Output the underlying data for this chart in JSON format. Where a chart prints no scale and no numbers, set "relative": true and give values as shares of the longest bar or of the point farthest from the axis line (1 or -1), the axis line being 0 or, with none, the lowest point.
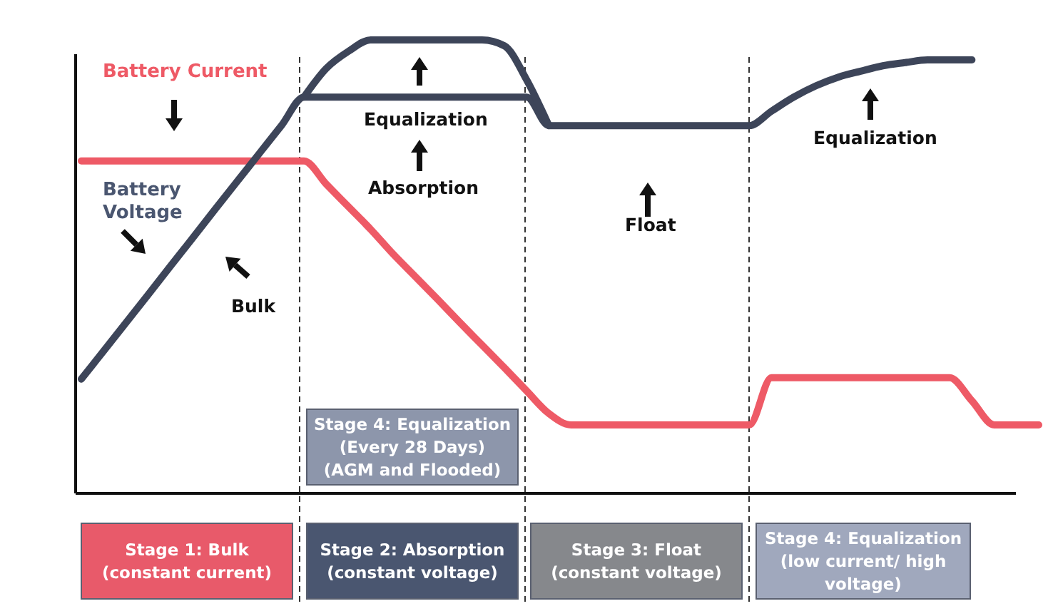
{
  "chart_data": {
    "type": "line",
    "relative": true,
    "categories": [
      null,
      null,
      null,
      null,
      null,
      null,
      null,
      null,
      null,
      null,
      null,
      null,
      null,
      null,
      null,
      null,
      null,
      null,
      null,
      null,
      null,
      null,
      null,
      null,
      null,
      null,
      null,
      null,
      null,
      null,
      null,
      null,
      null,
      null,
      null,
      null,
      null,
      null,
      null,
      null,
      null,
      null,
      null,
      null
    ],
    "series": [
      {
        "name": "Battery Current",
        "color": "#ee5a66",
        "values": [
          0.733,
          0.733,
          0.733,
          0.733,
          0.733,
          0.733,
          0.733,
          0.733,
          0.733,
          0.733,
          0.733,
          0.682,
          0.632,
          0.582,
          0.528,
          0.478,
          0.428,
          0.377,
          0.327,
          0.277,
          0.226,
          0.176,
          0.151,
          0.151,
          0.151,
          0.151,
          0.151,
          0.151,
          0.151,
          0.151,
          0.151,
          0.255,
          0.255,
          0.255,
          0.255,
          0.255,
          0.255,
          0.255,
          0.255,
          0.255,
          0.204,
          0.151,
          0.151,
          0.151
        ]
      },
      {
        "name": "Battery Voltage",
        "color": "#3d4559",
        "values": [
          0.252,
          0.314,
          0.376,
          0.438,
          0.501,
          0.563,
          0.626,
          0.688,
          0.75,
          0.812,
          0.874,
          0.874,
          0.874,
          0.874,
          0.874,
          0.874,
          0.874,
          0.874,
          0.874,
          0.874,
          0.874,
          0.811,
          0.811,
          0.811,
          0.811,
          0.811,
          0.811,
          0.811,
          0.811,
          0.811,
          0.811,
          0.843,
          0.874,
          0.899,
          0.918,
          0.931,
          0.943,
          0.95,
          0.956,
          0.956,
          0.956,
          null,
          null,
          null
        ]
      },
      {
        "color": "#3d4559",
        "values": [
          null,
          null,
          null,
          null,
          null,
          null,
          null,
          null,
          null,
          null,
          0.874,
          0.937,
          0.975,
          1,
          1,
          1,
          1,
          1,
          1,
          0.987,
          0.912,
          0.811,
          null,
          null,
          null,
          null,
          null,
          null,
          null,
          null,
          null,
          null,
          null,
          null,
          null,
          null,
          null,
          null,
          null,
          null,
          null,
          null,
          null,
          null
        ]
      }
    ],
    "annotations": [
      "Bulk",
      "Equalization",
      "Absorption",
      "Float",
      "Equalization",
      "Stage 4: Equalization\n(Every 28 Days)\n(AGM and Flooded)",
      "Stage 1: Bulk\n(constant current)",
      "Stage 2: Absorption\n(constant voltage)",
      "Stage 3: Float\n(constant voltage)",
      "Stage 4: Equalization\n(low current/ high\nvoltage)"
    ]
  }
}
